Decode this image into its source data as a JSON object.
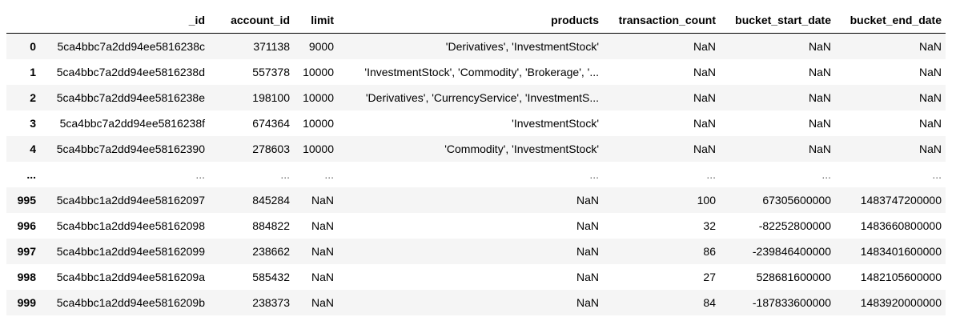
{
  "columns": [
    "",
    "_id",
    "account_id",
    "limit",
    "products",
    "transaction_count",
    "bucket_start_date",
    "bucket_end_date"
  ],
  "rows": [
    {
      "index": "0",
      "_id": "5ca4bbc7a2dd94ee5816238c",
      "account_id": "371138",
      "limit": "9000",
      "products": "'Derivatives', 'InvestmentStock'",
      "transaction_count": "NaN",
      "bucket_start_date": "NaN",
      "bucket_end_date": "NaN"
    },
    {
      "index": "1",
      "_id": "5ca4bbc7a2dd94ee5816238d",
      "account_id": "557378",
      "limit": "10000",
      "products": "'InvestmentStock', 'Commodity', 'Brokerage', '...",
      "transaction_count": "NaN",
      "bucket_start_date": "NaN",
      "bucket_end_date": "NaN"
    },
    {
      "index": "2",
      "_id": "5ca4bbc7a2dd94ee5816238e",
      "account_id": "198100",
      "limit": "10000",
      "products": "'Derivatives', 'CurrencyService', 'InvestmentS...",
      "transaction_count": "NaN",
      "bucket_start_date": "NaN",
      "bucket_end_date": "NaN"
    },
    {
      "index": "3",
      "_id": "5ca4bbc7a2dd94ee5816238f",
      "account_id": "674364",
      "limit": "10000",
      "products": "'InvestmentStock'",
      "transaction_count": "NaN",
      "bucket_start_date": "NaN",
      "bucket_end_date": "NaN"
    },
    {
      "index": "4",
      "_id": "5ca4bbc7a2dd94ee58162390",
      "account_id": "278603",
      "limit": "10000",
      "products": "'Commodity', 'InvestmentStock'",
      "transaction_count": "NaN",
      "bucket_start_date": "NaN",
      "bucket_end_date": "NaN"
    },
    {
      "index": "...",
      "_id": "...",
      "account_id": "...",
      "limit": "...",
      "products": "...",
      "transaction_count": "...",
      "bucket_start_date": "...",
      "bucket_end_date": "..."
    },
    {
      "index": "995",
      "_id": "5ca4bbc1a2dd94ee58162097",
      "account_id": "845284",
      "limit": "NaN",
      "products": "NaN",
      "transaction_count": "100",
      "bucket_start_date": "67305600000",
      "bucket_end_date": "1483747200000"
    },
    {
      "index": "996",
      "_id": "5ca4bbc1a2dd94ee58162098",
      "account_id": "884822",
      "limit": "NaN",
      "products": "NaN",
      "transaction_count": "32",
      "bucket_start_date": "-82252800000",
      "bucket_end_date": "1483660800000"
    },
    {
      "index": "997",
      "_id": "5ca4bbc1a2dd94ee58162099",
      "account_id": "238662",
      "limit": "NaN",
      "products": "NaN",
      "transaction_count": "86",
      "bucket_start_date": "-239846400000",
      "bucket_end_date": "1483401600000"
    },
    {
      "index": "998",
      "_id": "5ca4bbc1a2dd94ee5816209a",
      "account_id": "585432",
      "limit": "NaN",
      "products": "NaN",
      "transaction_count": "27",
      "bucket_start_date": "528681600000",
      "bucket_end_date": "1482105600000"
    },
    {
      "index": "999",
      "_id": "5ca4bbc1a2dd94ee5816209b",
      "account_id": "238373",
      "limit": "NaN",
      "products": "NaN",
      "transaction_count": "84",
      "bucket_start_date": "-187833600000",
      "bucket_end_date": "1483920000000"
    }
  ],
  "colors": {
    "striped_row": "#f5f5f5",
    "header_rule": "#000000",
    "ellipsis_text": "#666666"
  }
}
